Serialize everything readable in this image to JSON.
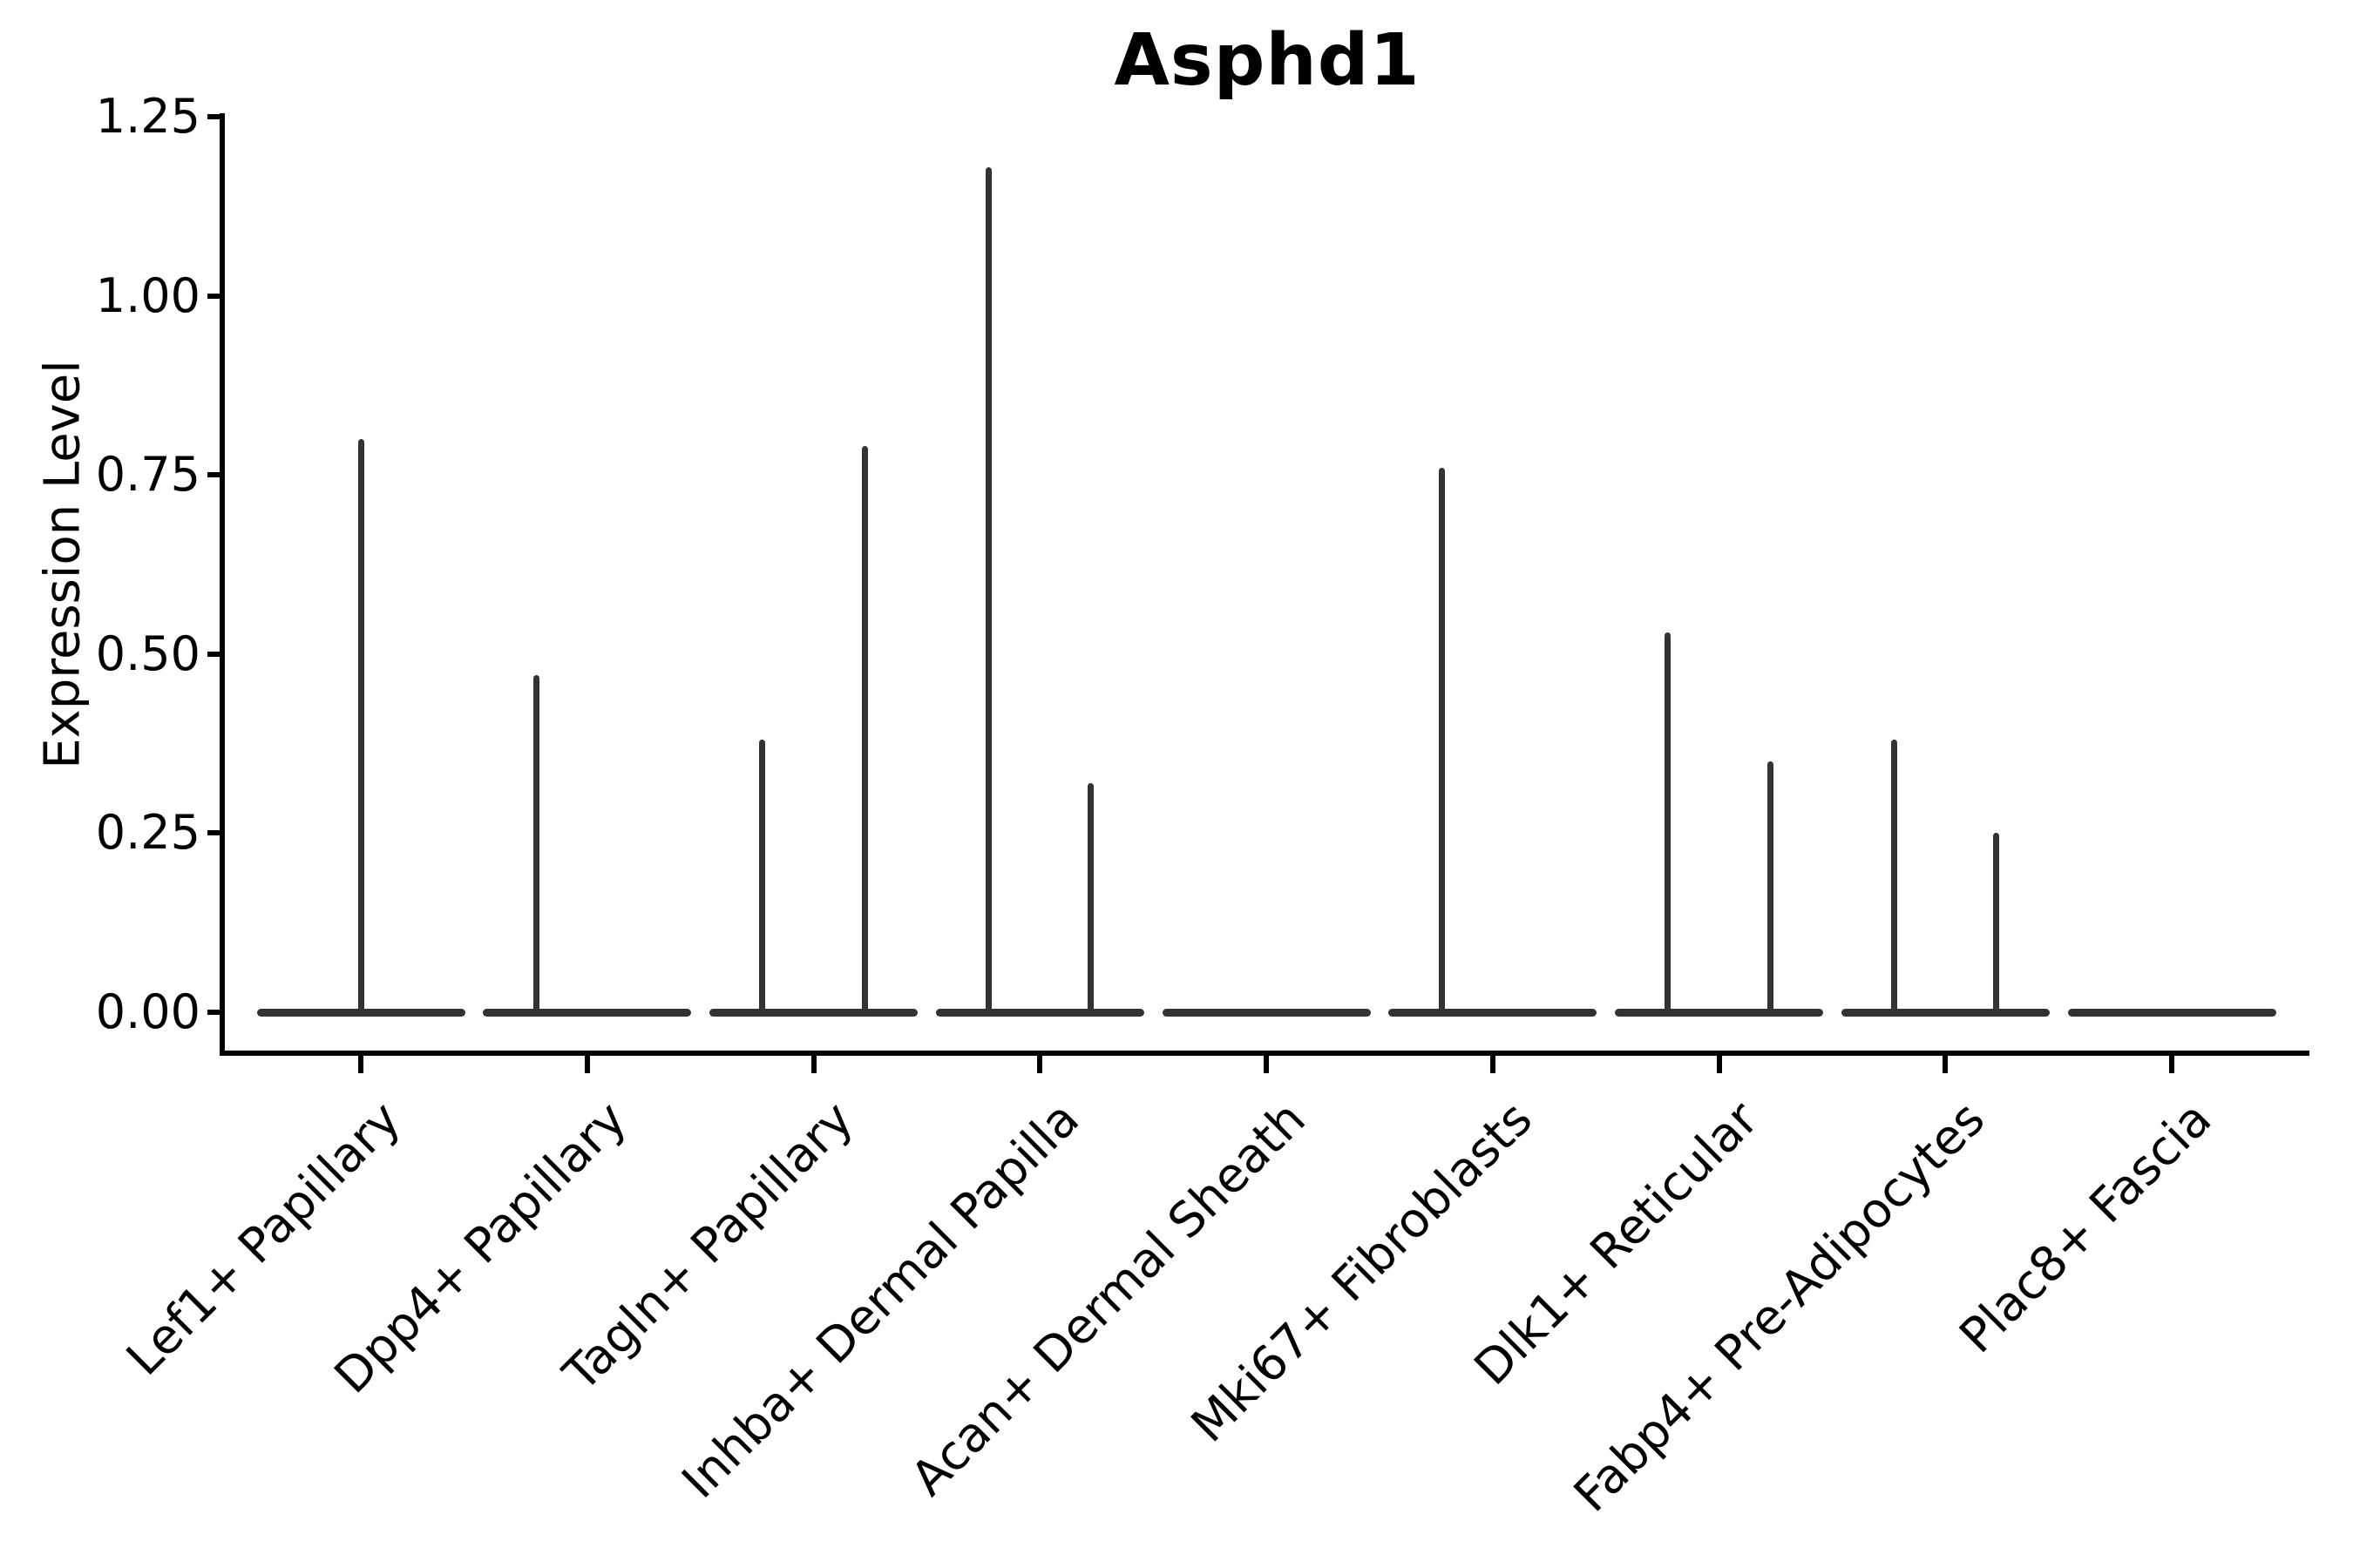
{
  "title": "Asphd1",
  "axes": {
    "ylabel": "Expression Level",
    "ytick_labels": [
      "0.00",
      "0.25",
      "0.50",
      "0.75",
      "1.00",
      "1.25"
    ]
  },
  "chart_data": {
    "type": "violin",
    "title": "Asphd1",
    "xlabel": "",
    "ylabel": "Expression Level",
    "ylim": [
      0,
      1.25
    ],
    "yticks": [
      0.0,
      0.25,
      0.5,
      0.75,
      1.0,
      1.25
    ],
    "grid": false,
    "legend": false,
    "style_note": "single-cell expression violin plot; near-zero-width violins: wide flat base at 0 with thin vertical density spike up to max expression",
    "ink_color": "#333333",
    "axis_color": "#000000",
    "categories": [
      {
        "label": "Lef1+ Papillary",
        "violins": [
          {
            "side": "center",
            "max": 0.8
          }
        ]
      },
      {
        "label": "Dpp4+ Papillary",
        "violins": [
          {
            "side": "left",
            "max": 0.47
          }
        ]
      },
      {
        "label": "Tagln+ Papillary",
        "violins": [
          {
            "side": "left",
            "max": 0.38
          },
          {
            "side": "right",
            "max": 0.79
          }
        ]
      },
      {
        "label": "Inhba+ Dermal Papilla",
        "violins": [
          {
            "side": "left",
            "max": 1.18
          },
          {
            "side": "right",
            "max": 0.32
          }
        ]
      },
      {
        "label": "Acan+ Dermal Sheath",
        "violins": []
      },
      {
        "label": "Mki67+ Fibroblasts",
        "violins": [
          {
            "side": "left",
            "max": 0.76
          }
        ]
      },
      {
        "label": "Dlk1+ Reticular",
        "violins": [
          {
            "side": "left",
            "max": 0.53
          },
          {
            "side": "right",
            "max": 0.35
          }
        ]
      },
      {
        "label": "Fabp4+ Pre-Adipocytes",
        "violins": [
          {
            "side": "left",
            "max": 0.38
          },
          {
            "side": "right",
            "max": 0.25
          }
        ]
      },
      {
        "label": "Plac8+ Fascia",
        "violins": []
      }
    ]
  }
}
